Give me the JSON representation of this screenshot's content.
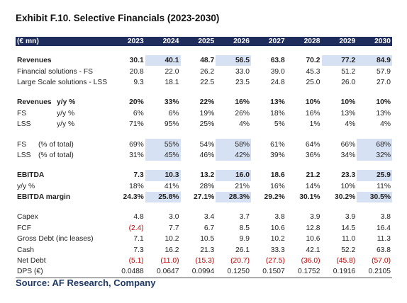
{
  "title": "Exhibit F.10. Selective Financials (2023-2030)",
  "table": {
    "header": {
      "label": "(€ mn)",
      "years": [
        "2023",
        "2024",
        "2025",
        "2026",
        "2027",
        "2028",
        "2029",
        "2030"
      ]
    },
    "sections": [
      {
        "rows": [
          {
            "name": "Revenues",
            "bold": true,
            "highlight": [
              1,
              3,
              6,
              7
            ],
            "values": [
              "30.1",
              "40.1",
              "48.7",
              "56.5",
              "63.8",
              "70.2",
              "77.2",
              "84.9"
            ]
          },
          {
            "name": "Financial solutions - FS",
            "values": [
              "20.8",
              "22.0",
              "26.2",
              "33.0",
              "39.0",
              "45.3",
              "51.2",
              "57.9"
            ]
          },
          {
            "name": "Large Scale solutions - LSS",
            "values": [
              "9.3",
              "18.1",
              "22.5",
              "23.5",
              "24.8",
              "25.0",
              "26.0",
              "27.0"
            ]
          }
        ]
      },
      {
        "rows": [
          {
            "name": "Revenues",
            "sub": "y/y %",
            "bold": true,
            "values": [
              "20%",
              "33%",
              "22%",
              "16%",
              "13%",
              "10%",
              "10%",
              "10%"
            ]
          },
          {
            "name": "FS",
            "sub": "y/y %",
            "values": [
              "6%",
              "6%",
              "19%",
              "26%",
              "18%",
              "16%",
              "13%",
              "13%"
            ]
          },
          {
            "name": "LSS",
            "sub": "y/y %",
            "values": [
              "71%",
              "95%",
              "25%",
              "4%",
              "5%",
              "1%",
              "4%",
              "4%"
            ]
          }
        ]
      },
      {
        "rows": [
          {
            "name": "FS",
            "sub": "(% of total)",
            "highlight": [
              1,
              3,
              7
            ],
            "values": [
              "69%",
              "55%",
              "54%",
              "58%",
              "61%",
              "64%",
              "66%",
              "68%"
            ]
          },
          {
            "name": "LSS",
            "sub": "(% of total)",
            "highlight": [
              1,
              3,
              7
            ],
            "values": [
              "31%",
              "45%",
              "46%",
              "42%",
              "39%",
              "36%",
              "34%",
              "32%"
            ]
          }
        ]
      },
      {
        "rows": [
          {
            "name": "EBITDA",
            "bold": true,
            "highlight": [
              1,
              3,
              7
            ],
            "values": [
              "7.3",
              "10.3",
              "13.2",
              "16.0",
              "18.6",
              "21.2",
              "23.3",
              "25.9"
            ]
          },
          {
            "name": "y/y %",
            "values": [
              "18%",
              "41%",
              "28%",
              "21%",
              "16%",
              "14%",
              "10%",
              "11%"
            ]
          },
          {
            "name": "EBITDA margin",
            "bold": true,
            "highlight": [
              1,
              3,
              7
            ],
            "values": [
              "24.3%",
              "25.8%",
              "27.1%",
              "28.3%",
              "29.2%",
              "30.1%",
              "30.2%",
              "30.5%"
            ]
          }
        ]
      },
      {
        "rows": [
          {
            "name": "Capex",
            "values": [
              "4.8",
              "3.0",
              "3.4",
              "3.7",
              "3.8",
              "3.9",
              "3.9",
              "3.8"
            ]
          },
          {
            "name": "FCF",
            "values": [
              "(2.4)",
              "7.7",
              "6.7",
              "8.5",
              "10.6",
              "12.8",
              "14.5",
              "16.4"
            ]
          },
          {
            "name": "Gross Debt (inc leases)",
            "values": [
              "7.1",
              "10.2",
              "10.5",
              "9.9",
              "10.2",
              "10.6",
              "11.0",
              "11.3"
            ]
          },
          {
            "name": "Cash",
            "values": [
              "7.3",
              "16.2",
              "21.3",
              "26.1",
              "33.3",
              "42.1",
              "52.2",
              "63.8"
            ]
          },
          {
            "name": "Net Debt",
            "values": [
              "(5.1)",
              "(11.0)",
              "(15.3)",
              "(20.7)",
              "(27.5)",
              "(36.0)",
              "(45.8)",
              "(57.0)"
            ]
          },
          {
            "name": "DPS (€)",
            "values": [
              "0.0488",
              "0.0647",
              "0.0994",
              "0.1250",
              "0.1507",
              "0.1752",
              "0.1916",
              "0.2105"
            ]
          }
        ]
      }
    ]
  },
  "source": "Source: AF Research, Company"
}
